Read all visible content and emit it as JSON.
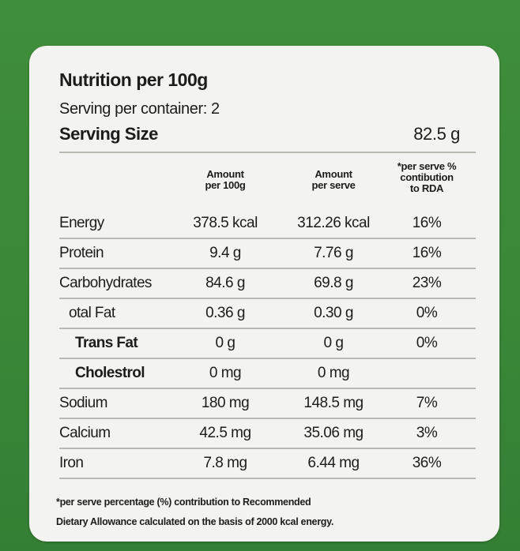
{
  "panel": {
    "title": "Nutrition per 100g",
    "servings_per_container": "Serving per container: 2",
    "serving_size_label": "Serving Size",
    "serving_size_value": "82.5 g"
  },
  "columns": {
    "col1": [
      "Amount",
      "per 100g"
    ],
    "col2": [
      "Amount",
      "per serve"
    ],
    "col3": [
      "*per serve %",
      "contibution",
      "to RDA"
    ]
  },
  "rows": [
    {
      "label": "Energy",
      "per100": "378.5 kcal",
      "perServe": "312.26 kcal",
      "rda": "16%"
    },
    {
      "label": "Protein",
      "per100": "9.4 g",
      "perServe": "7.76 g",
      "rda": "16%"
    },
    {
      "label": "Carbohydrates",
      "per100": "84.6 g",
      "perServe": "69.8 g",
      "rda": "23%"
    },
    {
      "label": "otal Fat",
      "per100": "0.36 g",
      "perServe": "0.30 g",
      "rda": "0%"
    },
    {
      "label": "Trans Fat",
      "per100": "0 g",
      "perServe": "0 g",
      "rda": "0%"
    },
    {
      "label": "Cholestrol",
      "per100": "0 mg",
      "perServe": "0 mg",
      "rda": ""
    },
    {
      "label": "Sodium",
      "per100": "180 mg",
      "perServe": "148.5 mg",
      "rda": "7%"
    },
    {
      "label": "Calcium",
      "per100": "42.5 mg",
      "perServe": "35.06 mg",
      "rda": "3%"
    },
    {
      "label": "Iron",
      "per100": "7.8 mg",
      "perServe": "6.44 mg",
      "rda": "36%"
    }
  ],
  "footnote": {
    "line1": "*per serve percentage (%) contribution to Recommended",
    "line2": "Dietary Allowance calculated on the basis of 2000 kcal energy."
  },
  "colors": {
    "background_green": "#3c8a3a",
    "card": "#f3f4f1",
    "text": "#1c1c1c"
  }
}
